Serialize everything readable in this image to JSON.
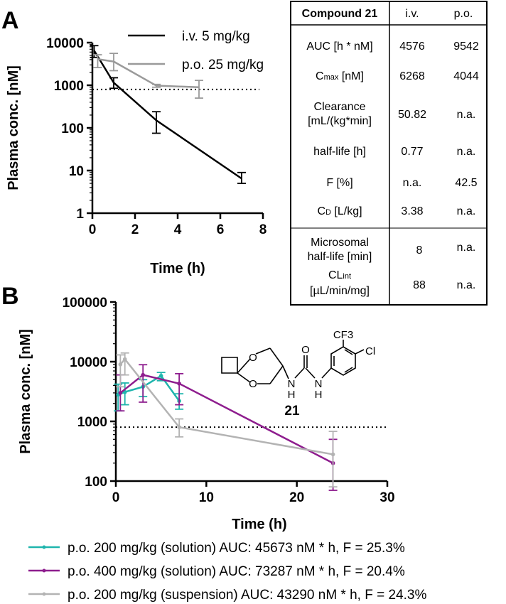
{
  "panel_a": {
    "label": "A",
    "legend": [
      "i.v. 5 mg/kg",
      "p.o. 25 mg/kg"
    ]
  },
  "panel_b": {
    "label": "B",
    "compound_number": "21",
    "molecule_atoms": {
      "o1": "O",
      "o2": "O",
      "n1": "N",
      "h1": "H",
      "n2": "N",
      "h2": "H",
      "o3": "O",
      "cf3": "CF3",
      "cl": "Cl"
    },
    "legend": [
      "p.o. 200 mg/kg (solution) AUC: 45673 nM * h, F = 25.3%",
      "p.o. 400 mg/kg (solution) AUC: 73287 nM * h, F = 20.4%",
      "p.o. 200 mg/kg (suspension) AUC: 43290 nM * h, F = 24.3%"
    ]
  },
  "table": {
    "title": "Compound 21",
    "col_iv": "i.v.",
    "col_po": "p.o.",
    "rows": [
      {
        "label": "AUC [h * nM]",
        "iv": "4576",
        "po": "9542"
      },
      {
        "label_main": "C",
        "label_sub": "max",
        "label_rest": " [nM]",
        "iv": "6268",
        "po": "4044"
      },
      {
        "label_line1": "Clearance",
        "label_line2": "[mL/(kg*min]",
        "iv": "50.82",
        "po": "n.a."
      },
      {
        "label": "half-life [h]",
        "iv": "0.77",
        "po": "n.a."
      },
      {
        "label": "F [%]",
        "iv": "n.a.",
        "po": "42.5"
      },
      {
        "label_main": "C",
        "label_sub": "D",
        "label_rest": " [L/kg]",
        "iv": "3.38",
        "po": "n.a."
      },
      {
        "label_line1": "Microsomal",
        "label_line2": "half-life [min]",
        "iv": "8",
        "po": "n.a."
      },
      {
        "label_main": "CL",
        "label_sub": "int",
        "label_line2": "[µL/min/mg]",
        "iv": "88",
        "po": "n.a."
      }
    ]
  },
  "chart_data": [
    {
      "type": "line",
      "panel": "A",
      "xlabel": "Time (h)",
      "ylabel": "Plasma conc. [nM]",
      "xlim": [
        0,
        8
      ],
      "ylim": [
        1,
        10000
      ],
      "yscale": "log",
      "xticks": [
        0,
        2,
        4,
        6,
        8
      ],
      "yticks": [
        1,
        10,
        100,
        1000,
        10000
      ],
      "ytick_labels": [
        "1",
        "10",
        "100",
        "1000",
        "10000"
      ],
      "reference_line": 800,
      "series": [
        {
          "name": "i.v. 5 mg/kg",
          "color": "#000000",
          "x": [
            0.083,
            1,
            3,
            7
          ],
          "y": [
            6500,
            1150,
            150,
            6.5
          ],
          "err_low": [
            4500,
            850,
            75,
            5
          ],
          "err_high": [
            8500,
            1500,
            240,
            9
          ]
        },
        {
          "name": "p.o. 25 mg/kg",
          "color": "#9a9a9a",
          "x": [
            0.25,
            1,
            3,
            5
          ],
          "y": [
            4100,
            3600,
            980,
            900
          ],
          "err_low": [
            2600,
            2200,
            900,
            500
          ],
          "err_high": [
            5200,
            5600,
            1050,
            1300
          ]
        }
      ]
    },
    {
      "type": "line",
      "panel": "B",
      "xlabel": "Time (h)",
      "ylabel": "Plasma conc. [nM]",
      "xlim": [
        0,
        30
      ],
      "ylim": [
        100,
        100000
      ],
      "yscale": "log",
      "xticks": [
        0,
        10,
        20,
        30
      ],
      "yticks": [
        100,
        1000,
        10000,
        100000
      ],
      "ytick_labels": [
        "100",
        "1000",
        "10000",
        "100000"
      ],
      "reference_line": 800,
      "series": [
        {
          "name": "p.o. 200 mg/kg (solution)",
          "color": "#1fb5ad",
          "x": [
            0.25,
            1,
            3,
            5,
            7
          ],
          "y": [
            2800,
            3100,
            3800,
            5800,
            2200
          ],
          "err_low": [
            1500,
            1900,
            2600,
            4800,
            1600
          ],
          "err_high": [
            4200,
            4400,
            5000,
            6600,
            2900
          ]
        },
        {
          "name": "p.o. 400 mg/kg (solution)",
          "color": "#8e1d8e",
          "x": [
            0.5,
            3,
            7,
            24
          ],
          "y": [
            3000,
            6000,
            4300,
            200
          ],
          "err_low": [
            1500,
            2100,
            1900,
            70
          ],
          "err_high": [
            6000,
            8900,
            6300,
            500
          ]
        },
        {
          "name": "p.o. 200 mg/kg (suspension)",
          "color": "#b3b3b3",
          "x": [
            0.5,
            1,
            7,
            24
          ],
          "y": [
            9000,
            11000,
            800,
            280
          ],
          "err_low": [
            3800,
            6000,
            550,
            80
          ],
          "err_high": [
            13000,
            14000,
            1100,
            680
          ]
        }
      ]
    }
  ]
}
